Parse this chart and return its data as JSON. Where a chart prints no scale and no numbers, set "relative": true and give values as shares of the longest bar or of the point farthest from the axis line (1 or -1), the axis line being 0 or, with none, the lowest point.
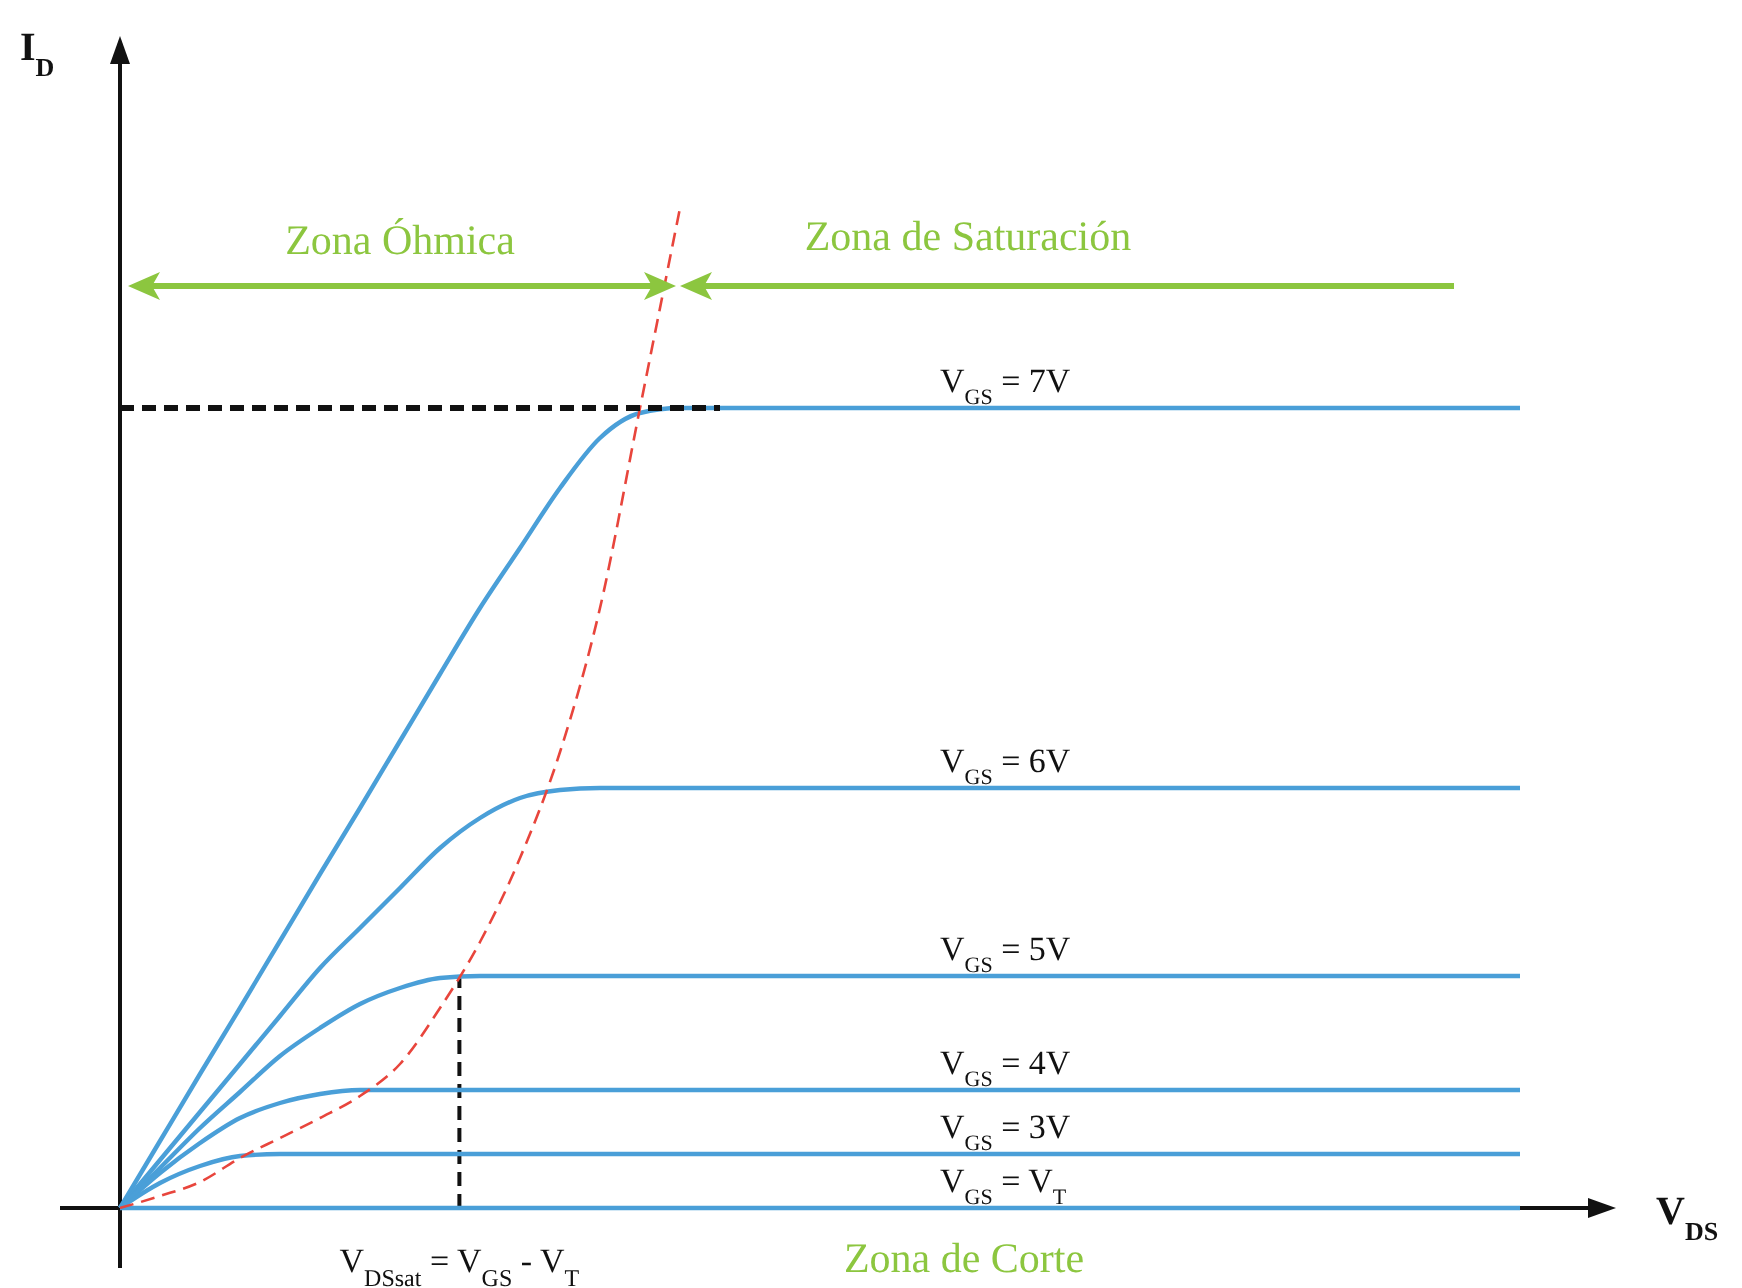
{
  "chart_data": {
    "type": "line",
    "relative": true,
    "xlabel": "V$_{DS}$",
    "ylabel": "I$_{D}$",
    "grid": false,
    "categories": [
      null,
      null,
      null,
      null,
      null,
      null,
      null,
      null,
      null,
      null,
      null,
      null,
      null,
      null,
      null,
      null,
      null,
      null,
      null,
      null,
      null,
      null,
      null,
      null,
      null,
      null,
      null,
      null,
      null,
      null,
      null,
      null,
      null,
      null,
      null,
      null
    ],
    "series": [
      {
        "name": "V$_{GS}$ = 7V",
        "color": "#4a9fd8",
        "line_style": "solid",
        "values": [
          0,
          0.067,
          0.134,
          0.2,
          0.267,
          0.334,
          0.4,
          0.467,
          0.534,
          0.6,
          0.66,
          0.72,
          0.77,
          0.795,
          0.8,
          0.8,
          0.8,
          0.8,
          0.8,
          0.8,
          0.8,
          0.8,
          0.8,
          0.8,
          0.8,
          0.8,
          0.8,
          0.8,
          0.8,
          0.8,
          0.8,
          0.8,
          0.8,
          0.8,
          0.8,
          0.8
        ]
      },
      {
        "name": "V$_{GS}$ = 6V",
        "color": "#4a9fd8",
        "line_style": "solid",
        "values": [
          0,
          0.048,
          0.096,
          0.144,
          0.192,
          0.24,
          0.28,
          0.32,
          0.36,
          0.39,
          0.41,
          0.418,
          0.42,
          0.42,
          0.42,
          0.42,
          0.42,
          0.42,
          0.42,
          0.42,
          0.42,
          0.42,
          0.42,
          0.42,
          0.42,
          0.42,
          0.42,
          0.42,
          0.42,
          0.42,
          0.42,
          0.42,
          0.42,
          0.42,
          0.42,
          0.42
        ]
      },
      {
        "name": "V$_{GS}$ = 5V",
        "color": "#4a9fd8",
        "line_style": "solid",
        "values": [
          0,
          0.04,
          0.08,
          0.116,
          0.152,
          0.18,
          0.204,
          0.22,
          0.23,
          0.232,
          0.232,
          0.232,
          0.232,
          0.232,
          0.232,
          0.232,
          0.232,
          0.232,
          0.232,
          0.232,
          0.232,
          0.232,
          0.232,
          0.232,
          0.232,
          0.232,
          0.232,
          0.232,
          0.232,
          0.232,
          0.232,
          0.232,
          0.232,
          0.232,
          0.232,
          0.232
        ]
      },
      {
        "name": "V$_{GS}$ = 4V",
        "color": "#4a9fd8",
        "line_style": "solid",
        "values": [
          0,
          0.035,
          0.065,
          0.09,
          0.105,
          0.114,
          0.118,
          0.118,
          0.118,
          0.118,
          0.118,
          0.118,
          0.118,
          0.118,
          0.118,
          0.118,
          0.118,
          0.118,
          0.118,
          0.118,
          0.118,
          0.118,
          0.118,
          0.118,
          0.118,
          0.118,
          0.118,
          0.118,
          0.118,
          0.118,
          0.118,
          0.118,
          0.118,
          0.118,
          0.118,
          0.118
        ]
      },
      {
        "name": "V$_{GS}$ = 3V",
        "color": "#4a9fd8",
        "line_style": "solid",
        "values": [
          0,
          0.025,
          0.042,
          0.052,
          0.054,
          0.054,
          0.054,
          0.054,
          0.054,
          0.054,
          0.054,
          0.054,
          0.054,
          0.054,
          0.054,
          0.054,
          0.054,
          0.054,
          0.054,
          0.054,
          0.054,
          0.054,
          0.054,
          0.054,
          0.054,
          0.054,
          0.054,
          0.054,
          0.054,
          0.054,
          0.054,
          0.054,
          0.054,
          0.054,
          0.054,
          0.054
        ]
      },
      {
        "name": "V$_{GS}$ = V$_{T}$",
        "color": "#4a9fd8",
        "line_style": "solid",
        "values": [
          0,
          0,
          0,
          0,
          0,
          0,
          0,
          0,
          0,
          0,
          0,
          0,
          0,
          0,
          0,
          0,
          0,
          0,
          0,
          0,
          0,
          0,
          0,
          0,
          0,
          0,
          0,
          0,
          0,
          0,
          0,
          0,
          0,
          0,
          0,
          0
        ]
      },
      {
        "color": "#e8453c",
        "line_style": "dashed",
        "values": [
          0,
          0.012,
          0.026,
          0.05,
          0.07,
          0.09,
          0.112,
          0.144,
          0.2,
          0.266,
          0.35,
          0.456,
          0.6,
          0.8,
          1.0,
          null,
          null,
          null,
          null,
          null,
          null,
          null,
          null,
          null,
          null,
          null,
          null,
          null,
          null,
          null,
          null,
          null,
          null,
          null,
          null,
          null
        ]
      },
      {
        "color": "#111111",
        "line_style": "dashed",
        "values": [
          0.8,
          0.8,
          0.8,
          0.8,
          0.8,
          0.8,
          0.8,
          0.8,
          0.8,
          0.8,
          0.8,
          0.8,
          0.8,
          0.8,
          0.8,
          0.8,
          null,
          null,
          null,
          null,
          null,
          null,
          null,
          null,
          null,
          null,
          null,
          null,
          null,
          null,
          null,
          null,
          null,
          null,
          null,
          null
        ]
      }
    ],
    "annotations": [
      "Zona Óhmica",
      "Zona de Saturación",
      "Zona de Corte",
      "V$_{DSsat}$ = V$_{GS}$ - V$_{T}$"
    ]
  }
}
